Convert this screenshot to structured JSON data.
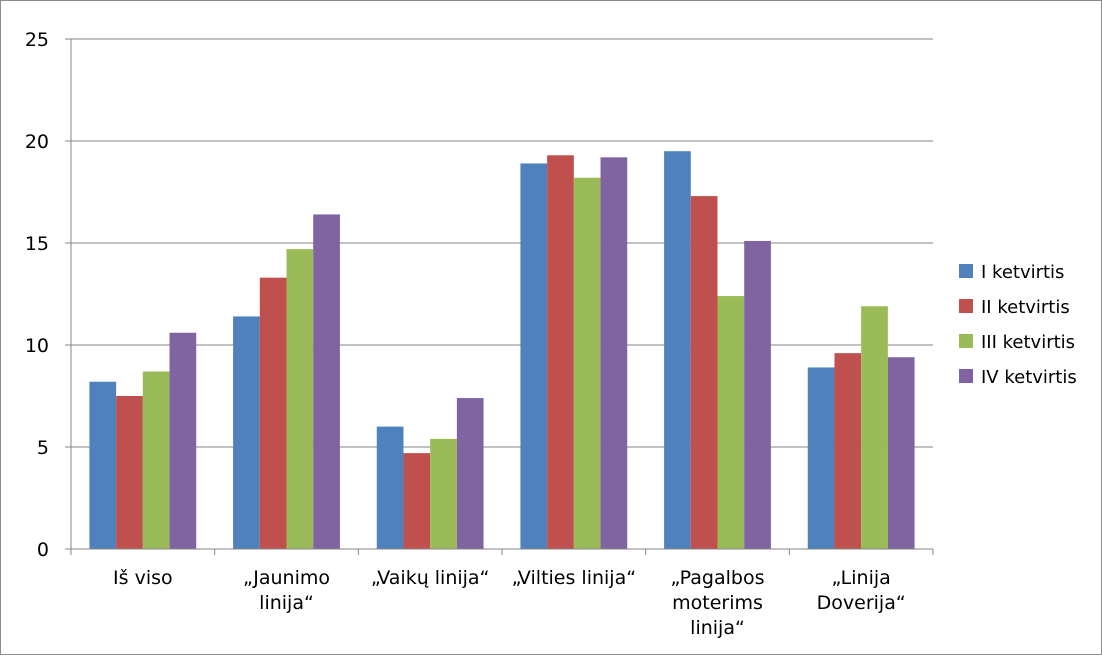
{
  "chart_data": {
    "type": "bar",
    "categories": [
      [
        "Iš viso"
      ],
      [
        "„Jaunimo",
        "linija“"
      ],
      [
        "„Vaikų linija“"
      ],
      [
        "„Vilties linija“"
      ],
      [
        "„Pagalbos",
        "moterims",
        "linija“"
      ],
      [
        "„Linija",
        "Doverija“"
      ]
    ],
    "series": [
      {
        "name": "I ketvirtis",
        "color": "#4f81bd",
        "values": [
          8.2,
          11.4,
          6.0,
          18.9,
          19.5,
          8.9
        ]
      },
      {
        "name": "II ketvirtis",
        "color": "#c0504d",
        "values": [
          7.5,
          13.3,
          4.7,
          19.3,
          17.3,
          9.6
        ]
      },
      {
        "name": "III ketvirtis",
        "color": "#9bbb59",
        "values": [
          8.7,
          14.7,
          5.4,
          18.2,
          12.4,
          11.9
        ]
      },
      {
        "name": "IV ketvirtis",
        "color": "#8064a2",
        "values": [
          10.6,
          16.4,
          7.4,
          19.2,
          15.1,
          9.4
        ]
      }
    ],
    "ylim": [
      0,
      25
    ],
    "yticks": [
      0,
      5,
      10,
      15,
      20,
      25
    ],
    "grid": true,
    "legend_position": "right",
    "title": "",
    "xlabel": "",
    "ylabel": ""
  }
}
